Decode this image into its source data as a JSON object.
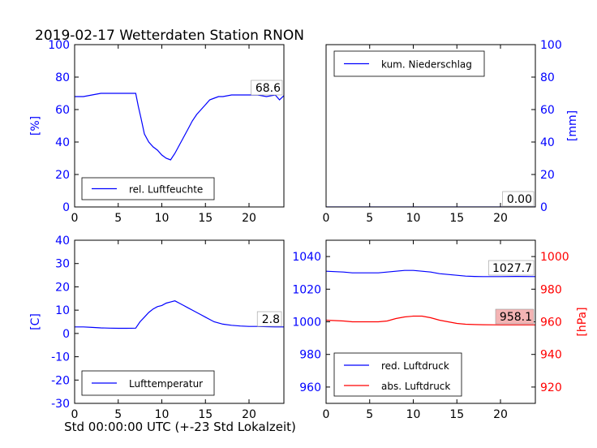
{
  "figure": {
    "title": "2019-02-17 Wetterdaten Station RNON",
    "xlabel": "Std 00:00:00 UTC (+-23 Std Lokalzeit)"
  },
  "colors": {
    "blue": "#0000ff",
    "red": "#ff0000",
    "black": "#000000",
    "highlight": "#f4b4b4"
  },
  "chart_data": [
    {
      "type": "line",
      "id": "humidity",
      "xlim": [
        0,
        24
      ],
      "ylim": [
        0,
        100
      ],
      "xticks": [
        0,
        5,
        10,
        15,
        20
      ],
      "yticks": [
        0,
        20,
        40,
        60,
        80,
        100
      ],
      "ylabel": "[%]",
      "annotation": "68.6",
      "legend_position": "lower-left",
      "series": [
        {
          "name": "rel. Luftfeuchte",
          "color": "#0000ff",
          "x": [
            0,
            1,
            2,
            3,
            4,
            5,
            6,
            7,
            7.3,
            7.6,
            8,
            8.5,
            9,
            9.5,
            10,
            10.5,
            11,
            11.5,
            12,
            12.5,
            13,
            13.5,
            14,
            14.5,
            15,
            15.5,
            16,
            16.5,
            17,
            18,
            19,
            20,
            21,
            22,
            23,
            23.5,
            24
          ],
          "y": [
            68,
            68,
            69,
            70,
            70,
            70,
            70,
            70,
            62,
            55,
            45,
            40,
            37,
            35,
            32,
            30,
            29,
            33,
            38,
            43,
            48,
            53,
            57,
            60,
            63,
            66,
            67,
            68,
            68,
            69,
            69,
            69,
            69,
            68,
            69,
            66,
            68.6
          ]
        }
      ]
    },
    {
      "type": "line",
      "id": "precip",
      "xlim": [
        0,
        24
      ],
      "ylim": [
        0,
        100
      ],
      "xticks": [
        0,
        5,
        10,
        15,
        20
      ],
      "yticks": [
        0,
        20,
        40,
        60,
        80,
        100
      ],
      "ylabel": "[mm]",
      "annotation": "0.00",
      "legend_position": "upper-left",
      "series": [
        {
          "name": "kum. Niederschlag",
          "color": "#0000ff",
          "x": [
            0,
            24
          ],
          "y": [
            0,
            0
          ]
        }
      ]
    },
    {
      "type": "line",
      "id": "temperature",
      "xlim": [
        0,
        24
      ],
      "ylim": [
        -30,
        40
      ],
      "xticks": [
        0,
        5,
        10,
        15,
        20
      ],
      "yticks": [
        -30,
        -20,
        -10,
        0,
        10,
        20,
        30,
        40
      ],
      "ylabel": "[C]",
      "annotation": "2.8",
      "legend_position": "lower-left",
      "series": [
        {
          "name": "Lufttemperatur",
          "color": "#0000ff",
          "x": [
            0,
            1,
            2,
            3,
            4,
            5,
            6,
            7,
            7.5,
            8,
            8.5,
            9,
            9.5,
            10,
            10.5,
            11,
            11.5,
            12,
            12.5,
            13,
            13.5,
            14,
            14.5,
            15,
            15.5,
            16,
            17,
            18,
            19,
            20,
            21,
            22,
            23,
            24
          ],
          "y": [
            2.8,
            2.8,
            2.6,
            2.4,
            2.3,
            2.2,
            2.2,
            2.3,
            5,
            7,
            9,
            10.5,
            11.5,
            12,
            13,
            13.5,
            14,
            13,
            12,
            11,
            10,
            9,
            8,
            7,
            6,
            5,
            4,
            3.5,
            3.2,
            3,
            3,
            2.9,
            2.8,
            2.8
          ]
        }
      ]
    },
    {
      "type": "line",
      "id": "pressure",
      "xlim": [
        0,
        24
      ],
      "ylim": [
        950,
        1050
      ],
      "yticks": [
        960,
        980,
        1000,
        1020,
        1040
      ],
      "xticks": [
        0,
        5,
        10,
        15,
        20
      ],
      "ylim_right": [
        910,
        1010
      ],
      "yticks_right": [
        920,
        940,
        960,
        980,
        1000
      ],
      "ylabel_right": "[hPa]",
      "annotations": [
        "1027.7",
        "958.1"
      ],
      "legend_position": "lower-left",
      "series": [
        {
          "name": "red. Luftdruck",
          "color": "#0000ff",
          "axis": "left",
          "x": [
            0,
            2,
            3,
            4,
            6,
            7,
            8,
            9,
            10,
            11,
            12,
            13,
            14,
            15,
            16,
            17,
            18,
            20,
            22,
            24
          ],
          "y": [
            1031,
            1030.5,
            1030,
            1030,
            1030,
            1030.5,
            1031,
            1031.5,
            1031.5,
            1031,
            1030.5,
            1029.5,
            1029,
            1028.5,
            1028,
            1027.8,
            1027.7,
            1027.7,
            1027.8,
            1027.7
          ]
        },
        {
          "name": "abs. Luftdruck",
          "color": "#ff0000",
          "axis": "right",
          "x": [
            0,
            2,
            3,
            4,
            6,
            7,
            8,
            9,
            10,
            11,
            12,
            13,
            14,
            15,
            16,
            17,
            18,
            20,
            22,
            24
          ],
          "y": [
            961,
            960.5,
            960,
            960,
            960,
            960.5,
            962,
            963,
            963.5,
            963.5,
            962.5,
            961,
            960,
            959,
            958.5,
            958.3,
            958.2,
            958.1,
            958.1,
            958.1
          ]
        }
      ]
    }
  ]
}
